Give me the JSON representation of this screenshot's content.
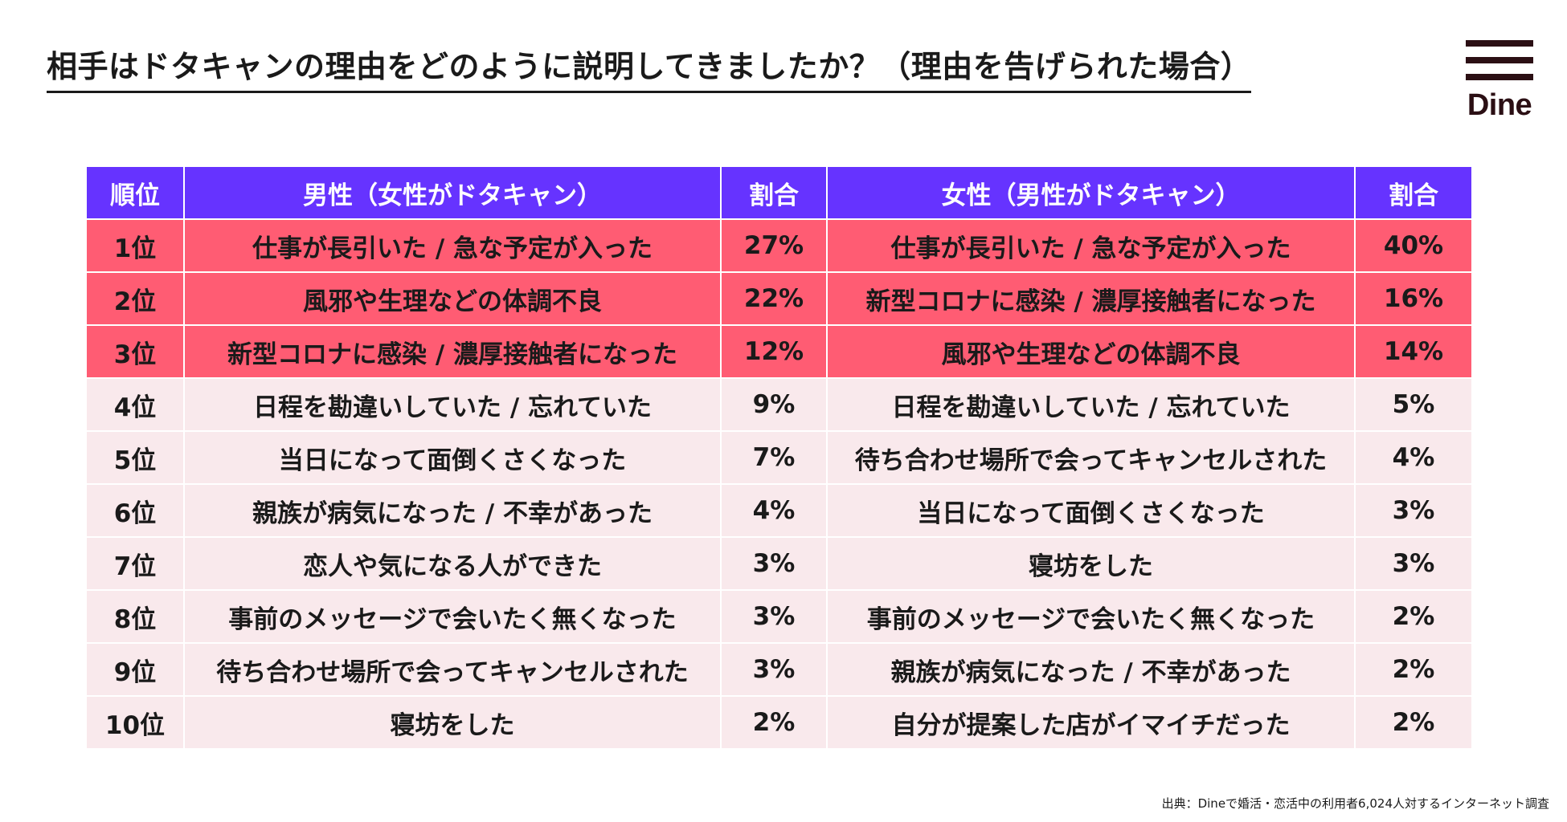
{
  "title": "相手はドタキャンの理由をどのように説明してきましたか？（理由を告げられた場合）",
  "logo": {
    "text": "Dine",
    "icon": "three-bars-icon"
  },
  "colors": {
    "header": "#6633ff",
    "top3": "#ff5c73",
    "rest": "#f9e9ec",
    "logo": "#2b0f14"
  },
  "source": "出典：Dineで婚活・恋活中の利用者6,024人対するインターネット調査",
  "chart_data": {
    "type": "table",
    "columns": [
      "順位",
      "男性（女性がドタキャン）",
      "割合",
      "女性（男性がドタキャン）",
      "割合"
    ],
    "rows": [
      {
        "rank": "1位",
        "male_reason": "仕事が長引いた / 急な予定が入った",
        "male_pct": "27%",
        "female_reason": "仕事が長引いた / 急な予定が入った",
        "female_pct": "40%",
        "highlight": true
      },
      {
        "rank": "2位",
        "male_reason": "風邪や生理などの体調不良",
        "male_pct": "22%",
        "female_reason": "新型コロナに感染 / 濃厚接触者になった",
        "female_pct": "16%",
        "highlight": true
      },
      {
        "rank": "3位",
        "male_reason": "新型コロナに感染 / 濃厚接触者になった",
        "male_pct": "12%",
        "female_reason": "風邪や生理などの体調不良",
        "female_pct": "14%",
        "highlight": true
      },
      {
        "rank": "4位",
        "male_reason": "日程を勘違いしていた / 忘れていた",
        "male_pct": "9%",
        "female_reason": "日程を勘違いしていた / 忘れていた",
        "female_pct": "5%",
        "highlight": false
      },
      {
        "rank": "5位",
        "male_reason": "当日になって面倒くさくなった",
        "male_pct": "7%",
        "female_reason": "待ち合わせ場所で会ってキャンセルされた",
        "female_pct": "4%",
        "highlight": false
      },
      {
        "rank": "6位",
        "male_reason": "親族が病気になった / 不幸があった",
        "male_pct": "4%",
        "female_reason": "当日になって面倒くさくなった",
        "female_pct": "3%",
        "highlight": false
      },
      {
        "rank": "7位",
        "male_reason": "恋人や気になる人ができた",
        "male_pct": "3%",
        "female_reason": "寝坊をした",
        "female_pct": "3%",
        "highlight": false
      },
      {
        "rank": "8位",
        "male_reason": "事前のメッセージで会いたく無くなった",
        "male_pct": "3%",
        "female_reason": "事前のメッセージで会いたく無くなった",
        "female_pct": "2%",
        "highlight": false
      },
      {
        "rank": "9位",
        "male_reason": "待ち合わせ場所で会ってキャンセルされた",
        "male_pct": "3%",
        "female_reason": "親族が病気になった / 不幸があった",
        "female_pct": "2%",
        "highlight": false
      },
      {
        "rank": "10位",
        "male_reason": "寝坊をした",
        "male_pct": "2%",
        "female_reason": "自分が提案した店がイマイチだった",
        "female_pct": "2%",
        "highlight": false
      }
    ]
  }
}
